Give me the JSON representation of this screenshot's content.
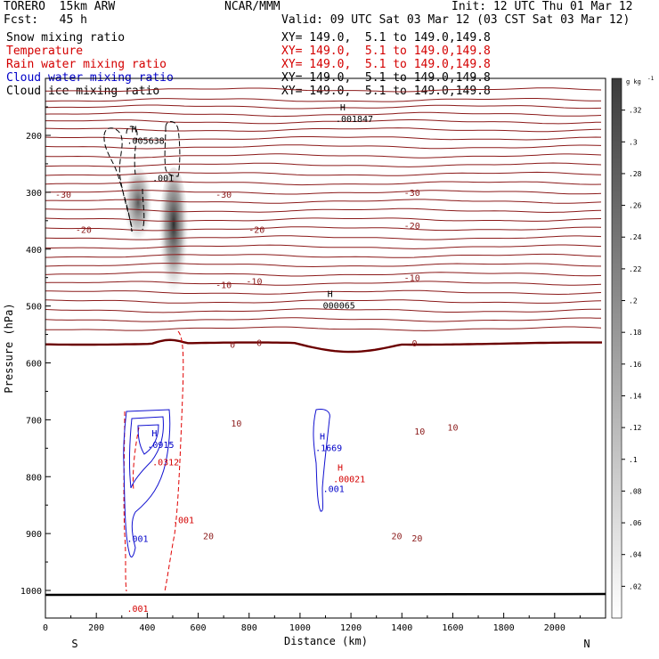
{
  "header": {
    "model": "TORERO  15km ARW",
    "center": "NCAR/MMM",
    "init": "Init: 12 UTC Thu 01 Mar 12",
    "fcst": "Fcst:   45 h",
    "valid": "Valid: 09 UTC Sat 03 Mar 12 (03 CST Sat 03 Mar 12)"
  },
  "fields": [
    {
      "name": "Snow mixing ratio",
      "xy": "XY= 149.0,  5.1 to 149.0,149.8",
      "color": "#000000"
    },
    {
      "name": "Temperature",
      "xy": "XY= 149.0,  5.1 to 149.0,149.8",
      "color": "#8b1a1a"
    },
    {
      "name": "Rain water mixing ratio",
      "xy": "XY= 149.0,  5.1 to 149.0,149.8",
      "color": "#d40000"
    },
    {
      "name": "Cloud water mixing ratio",
      "xy": "XY= 149.0,  5.1 to 149.0,149.8",
      "color": "#0000c8"
    },
    {
      "name": "Cloud ice mixing ratio",
      "xy": "XY= 149.0,  5.1 to 149.0,149.8",
      "color": "#000000"
    }
  ],
  "chart_data": {
    "type": "cross-section",
    "xlabel": "Distance (km)",
    "ylabel": "Pressure (hPa)",
    "xlim": [
      0,
      2200
    ],
    "ylim": [
      1050,
      100
    ],
    "xticks": [
      0,
      200,
      400,
      600,
      800,
      1000,
      1200,
      1400,
      1600,
      1800,
      2000
    ],
    "yticks": [
      200,
      300,
      400,
      500,
      600,
      700,
      800,
      900,
      1000
    ],
    "side_labels": {
      "left": "S",
      "right": "N"
    },
    "colorbar": {
      "unit": "g kg",
      "unit_exp": "-1",
      "ticks": [
        ".02",
        ".04",
        ".06",
        ".08",
        ".1",
        ".12",
        ".14",
        ".16",
        ".18",
        ".2",
        ".22",
        ".24",
        ".26",
        ".28",
        ".3",
        ".32"
      ]
    },
    "isotherm_labels": [
      {
        "text": "-30",
        "x": 70,
        "p": 303
      },
      {
        "text": "-30",
        "x": 700,
        "p": 303
      },
      {
        "text": "-30",
        "x": 1440,
        "p": 300
      },
      {
        "text": "-20",
        "x": 150,
        "p": 365
      },
      {
        "text": "-20",
        "x": 830,
        "p": 365
      },
      {
        "text": "-20",
        "x": 1440,
        "p": 358
      },
      {
        "text": "-10",
        "x": 700,
        "p": 462
      },
      {
        "text": "-10",
        "x": 820,
        "p": 456
      },
      {
        "text": "-10",
        "x": 1440,
        "p": 450
      },
      {
        "text": "0",
        "x": 735,
        "p": 567
      },
      {
        "text": "0",
        "x": 840,
        "p": 564
      },
      {
        "text": "0",
        "x": 1450,
        "p": 565
      },
      {
        "text": "10",
        "x": 750,
        "p": 706
      },
      {
        "text": "10",
        "x": 1470,
        "p": 720
      },
      {
        "text": "10",
        "x": 1600,
        "p": 713
      },
      {
        "text": "20",
        "x": 640,
        "p": 904
      },
      {
        "text": "20",
        "x": 1380,
        "p": 904
      },
      {
        "text": "20",
        "x": 1460,
        "p": 908
      }
    ],
    "annotations": [
      {
        "h": "H",
        "text": ".005638",
        "x": 320,
        "p": 210,
        "color": "#000000"
      },
      {
        "h": "",
        "text": ".001",
        "x": 420,
        "p": 276,
        "color": "#000000"
      },
      {
        "h": "H",
        "text": ".001847",
        "x": 1140,
        "p": 172,
        "color": "#000000"
      },
      {
        "h": "H",
        "text": "000065",
        "x": 1090,
        "p": 500,
        "color": "#000000"
      },
      {
        "h": "H",
        "text": ".0915",
        "x": 400,
        "p": 745,
        "color": "#0000c8"
      },
      {
        "h": "",
        "text": ".0312",
        "x": 420,
        "p": 775,
        "color": "#d40000"
      },
      {
        "h": "H",
        "text": ".1669",
        "x": 1060,
        "p": 750,
        "color": "#0000c8"
      },
      {
        "h": "H",
        "text": ".00021",
        "x": 1130,
        "p": 805,
        "color": "#d40000"
      },
      {
        "h": "",
        "text": ".001",
        "x": 1090,
        "p": 822,
        "color": "#0000c8"
      },
      {
        "h": "",
        "text": ".001",
        "x": 500,
        "p": 877,
        "color": "#d40000"
      },
      {
        "h": "",
        "text": ".001",
        "x": 320,
        "p": 910,
        "color": "#0000c8"
      },
      {
        "h": "",
        "text": ".001",
        "x": 320,
        "p": 1033,
        "color": "#d40000"
      }
    ]
  }
}
